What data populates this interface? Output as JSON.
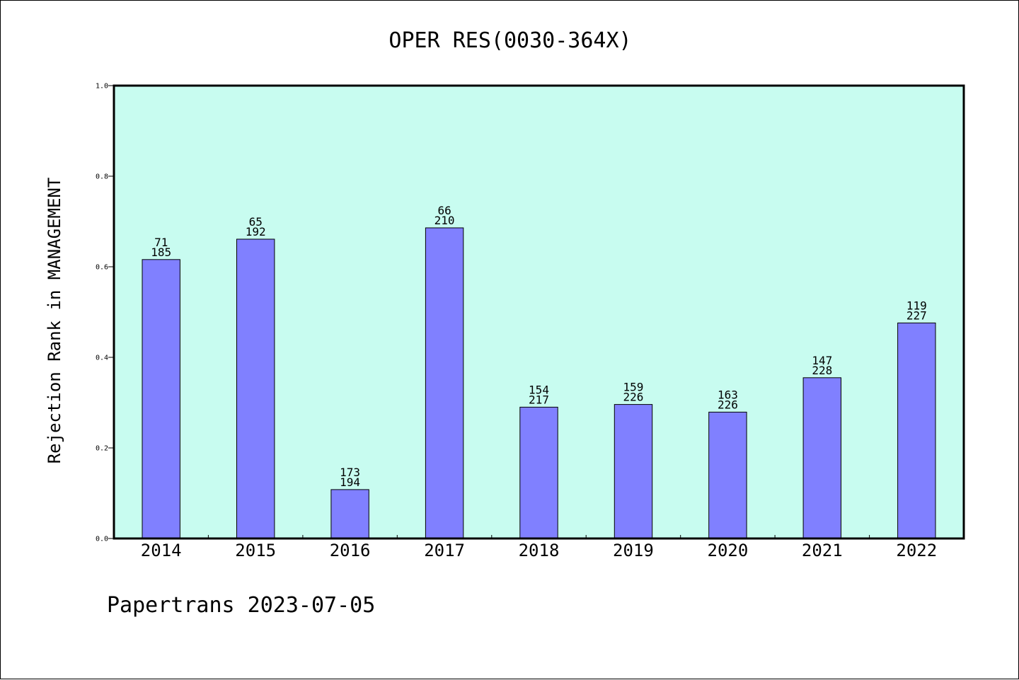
{
  "colors": {
    "plot_background": "#c8fcf0",
    "bar_fill": "#8080ff",
    "bar_stroke": "#000000",
    "axis": "#000000"
  },
  "footer": {
    "text": "Papertrans 2023-07-05"
  },
  "chart_data": {
    "type": "bar",
    "title": "OPER RES(0030-364X)",
    "xlabel": "",
    "ylabel": "Rejection Rank in MANAGEMENT",
    "ylim": [
      0,
      1.0
    ],
    "yticks": [
      "0.0",
      "0.2",
      "0.4",
      "0.6",
      "0.8",
      "1.0"
    ],
    "grid": false,
    "categories": [
      "2014",
      "2015",
      "2016",
      "2017",
      "2018",
      "2019",
      "2020",
      "2021",
      "2022"
    ],
    "values": [
      0.616,
      0.661,
      0.108,
      0.686,
      0.29,
      0.296,
      0.279,
      0.355,
      0.476
    ],
    "labels_top": [
      "71",
      "65",
      "173",
      "66",
      "154",
      "159",
      "163",
      "147",
      "119"
    ],
    "labels_bottom": [
      "185",
      "192",
      "194",
      "210",
      "217",
      "226",
      "226",
      "228",
      "227"
    ]
  }
}
